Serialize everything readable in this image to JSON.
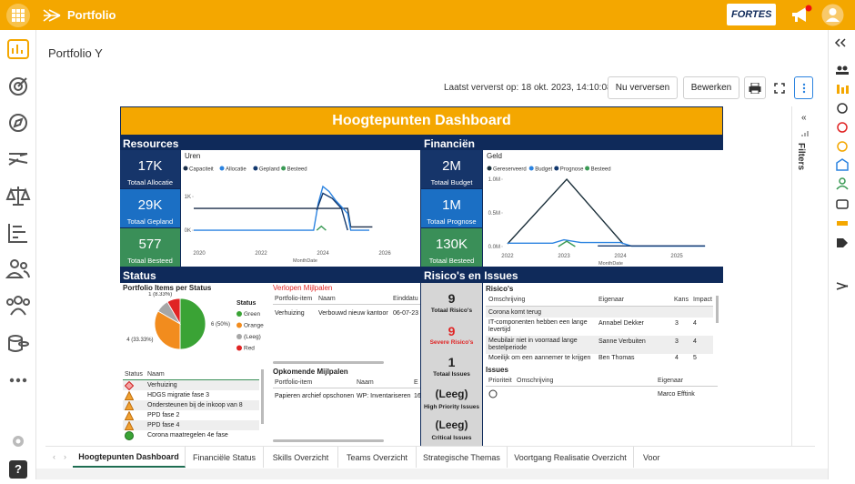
{
  "app": {
    "title": "Portfolio",
    "brand": "FORTES"
  },
  "page": {
    "title": "Portfolio Y",
    "refreshed": "Laatst ververst op: 18 okt. 2023, 14:10:08",
    "refresh_button": "Nu verversen",
    "edit_button": "Bewerken"
  },
  "dashboard": {
    "title": "Hoogtepunten Dashboard",
    "resources": {
      "heading": "Resources",
      "kpis": [
        {
          "value": "17K",
          "label": "Totaal Allocatie"
        },
        {
          "value": "29K",
          "label": "Totaal Gepland"
        },
        {
          "value": "577",
          "label": "Totaal Besteed"
        }
      ],
      "chart": {
        "type": "line",
        "title": "Uren",
        "x_label": "MonthDate",
        "xlim": [
          2019.82,
          2027.03
        ],
        "xticks": [
          2020,
          2022,
          2024,
          2026
        ],
        "ylim": [
          -510,
          1570
        ],
        "yticks": [
          {
            "value": 0,
            "label": "0K"
          },
          {
            "value": 1000,
            "label": "1K"
          }
        ],
        "series": [
          {
            "name": "Capaciteit",
            "color": "#1b2f4a",
            "x": [
              2019.82,
              2024.8,
              2024.9,
              2025.6
            ],
            "values": [
              650,
              650,
              100,
              100
            ]
          },
          {
            "name": "Allocatie",
            "color": "#2b83e0",
            "x": [
              2019.82,
              2023.7,
              2023.85,
              2024.0,
              2024.2,
              2024.4,
              2024.6,
              2024.8,
              2024.9,
              2025.5
            ],
            "values": [
              0,
              0,
              800,
              1300,
              1150,
              900,
              700,
              500,
              0,
              0
            ]
          },
          {
            "name": "Gepland",
            "color": "#12386e",
            "x": [
              2023.8,
              2024.0,
              2024.3,
              2024.6,
              2024.8
            ],
            "values": [
              600,
              1100,
              950,
              650,
              0
            ]
          },
          {
            "name": "Besteed",
            "color": "#3a9a55",
            "x": [
              2023.8,
              2023.95,
              2024.1
            ],
            "values": [
              0,
              120,
              0
            ]
          }
        ]
      }
    },
    "finances": {
      "heading": "Financiën",
      "kpis": [
        {
          "value": "2M",
          "label": "Totaal Budget"
        },
        {
          "value": "1M",
          "label": "Totaal Prognose"
        },
        {
          "value": "130K",
          "label": "Totaal Besteed"
        }
      ],
      "chart": {
        "type": "line",
        "title": "Geld",
        "x_label": "MonthDate",
        "xlim": [
          2021.92,
          2025.74
        ],
        "xticks": [
          2022,
          2023,
          2024,
          2025
        ],
        "ylim": [
          -54000,
          1095000
        ],
        "yticks": [
          {
            "value": 0,
            "label": "0.0M"
          },
          {
            "value": 500000,
            "label": "0.5M"
          },
          {
            "value": 1000000,
            "label": "1.0M"
          }
        ],
        "series": [
          {
            "name": "Gereserveerd",
            "color": "#1b2f3a",
            "x": [
              2022.0,
              2023.05,
              2024.05
            ],
            "values": [
              40000,
              1000000,
              40000
            ]
          },
          {
            "name": "Budget",
            "color": "#2b83e0",
            "x": [
              2022.0,
              2022.8,
              2023.0,
              2023.3,
              2024.0,
              2024.2,
              2025.5
            ],
            "values": [
              50000,
              50000,
              100000,
              60000,
              60000,
              5000,
              5000
            ]
          },
          {
            "name": "Prognose",
            "color": "#12386e",
            "x": [
              2023.6,
              2025.5
            ],
            "values": [
              10000,
              10000
            ]
          },
          {
            "name": "Besteed",
            "color": "#3a9a55",
            "x": [
              2022.9,
              2023.05,
              2023.2
            ],
            "values": [
              0,
              80000,
              0
            ]
          }
        ]
      }
    },
    "status": {
      "heading": "Status",
      "pie": {
        "type": "pie",
        "title": "Portfolio Items per Status",
        "legend_title": "Status",
        "categories": [
          "Green",
          "Orange",
          "(Leeg)",
          "Red"
        ],
        "values": [
          6,
          4,
          1,
          1
        ],
        "value_labels": [
          "6 (50%)",
          "4 (33.33%)",
          null,
          "1 (8.33%)"
        ],
        "colors": [
          "#3aa335",
          "#f28c1e",
          "#a6a6a6",
          "#e02424"
        ]
      },
      "items_table": {
        "columns": [
          "Status",
          "Naam"
        ],
        "rows": [
          "Verhuizing",
          "HDGS migratie fase 3",
          "Ondersteunen bij de inkoop van 8",
          "PPD fase 2",
          "PPD fase 4",
          "Corona maatregelen 4e fase"
        ]
      },
      "overdue": {
        "title": "Verlopen Mijlpalen",
        "columns": [
          "Portfolio-item",
          "Naam",
          "Einddatu"
        ],
        "rows": [
          [
            "Verhuizing",
            "Verbouwd nieuw kantoor",
            "06-07-23"
          ]
        ]
      },
      "upcoming": {
        "title": "Opkomende Mijlpalen",
        "columns": [
          "Portfolio-item",
          "Naam",
          "E"
        ],
        "rows": [
          [
            "Papieren archief opschonen",
            "WP: Inventariseren",
            "16"
          ]
        ]
      }
    },
    "risks": {
      "heading": "Risico's en Issues",
      "kpis": [
        {
          "value": "9",
          "label": "Totaal Risico's"
        },
        {
          "value": "9",
          "label": "Severe Risico's"
        },
        {
          "value": "1",
          "label": "Totaal Issues"
        },
        {
          "value": "(Leeg)",
          "label": "High Priority Issues"
        },
        {
          "value": "(Leeg)",
          "label": "Critical Issues"
        }
      ],
      "risk_table": {
        "title": "Risico's",
        "columns": [
          "Omschrijving",
          "Eigenaar",
          "Kans",
          "Impact"
        ],
        "rows": [
          {
            "description": "Corona komt terug"
          },
          {
            "description": "IT-componenten hebben een lange levertijd",
            "owner": "Annabel Dekker",
            "chance": "3",
            "impact": "4"
          },
          {
            "description": "Meubilair niet in voorraad lange bestelperiode",
            "owner": "Sanne Verbuiten",
            "chance": "3",
            "impact": "4"
          },
          {
            "description": "Moeilijk om een aannemer te krijgen",
            "owner": "Ben Thomas",
            "chance": "4",
            "impact": "5"
          }
        ]
      },
      "issues": {
        "title": "Issues",
        "columns": [
          "Prioriteit",
          "Omschrijving",
          "Eigenaar"
        ],
        "rows": [
          {
            "owner": "Marco Efftink"
          }
        ]
      }
    }
  },
  "filters": "Filters",
  "tabs": [
    "Hoogtepunten Dashboard",
    "Financiële Status",
    "Skills Overzicht",
    "Teams Overzicht",
    "Strategische Themas",
    "Voortgang Realisatie Overzicht",
    "Voor"
  ]
}
